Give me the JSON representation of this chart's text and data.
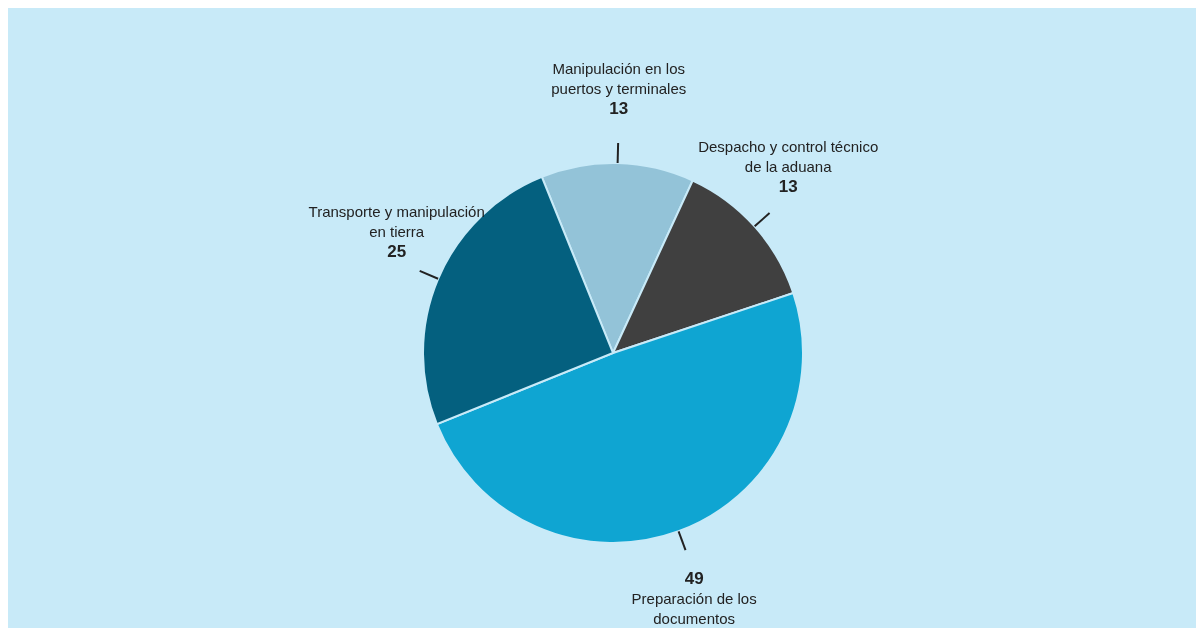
{
  "chart_data": {
    "type": "pie",
    "categories": [
      "Manipulación en los puertos y terminales",
      "Despacho y control técnico de la aduana",
      "Preparación de los documentos",
      "Transporte y manipulación en tierra"
    ],
    "values": [
      13,
      13,
      49,
      25
    ],
    "colors": [
      "#93c3d8",
      "#404040",
      "#0fa5d2",
      "#04607f"
    ],
    "data_labels": true
  }
}
